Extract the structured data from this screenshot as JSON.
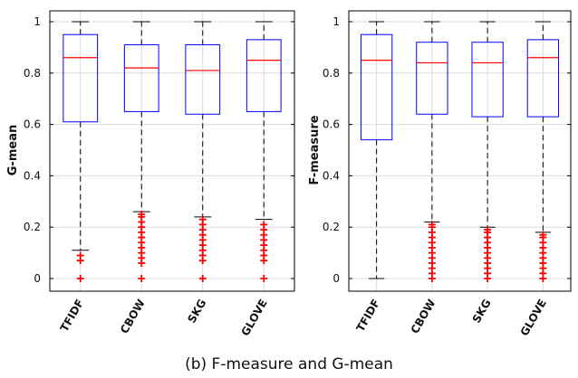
{
  "caption": "(b) F-measure and G-mean",
  "colors": {
    "box": "#0000ff",
    "median": "#ff0000",
    "outlier": "#ff0000",
    "whisker": "#000000",
    "grid": "#dcdcdc"
  },
  "chart_data": [
    {
      "type": "box",
      "ylabel": "G-mean",
      "xlabel": "",
      "title": "",
      "ylim": [
        0,
        1
      ],
      "yticks": [
        "0",
        "0.2",
        "0.4",
        "0.6",
        "0.8",
        "1"
      ],
      "grid": true,
      "categories": [
        "TFIDF",
        "CBOW",
        "SKG",
        "GLOVE"
      ],
      "boxes": [
        {
          "whisker_low": 0.11,
          "q1": 0.61,
          "median": 0.86,
          "q3": 0.95,
          "whisker_high": 1.0,
          "outliers": [
            0.0,
            0.07,
            0.09
          ]
        },
        {
          "whisker_low": 0.26,
          "q1": 0.65,
          "median": 0.82,
          "q3": 0.91,
          "whisker_high": 1.0,
          "outliers": [
            0.0,
            0.06,
            0.08,
            0.1,
            0.12,
            0.14,
            0.16,
            0.18,
            0.2,
            0.22,
            0.24,
            0.25
          ]
        },
        {
          "whisker_low": 0.24,
          "q1": 0.64,
          "median": 0.81,
          "q3": 0.91,
          "whisker_high": 1.0,
          "outliers": [
            0.0,
            0.07,
            0.09,
            0.11,
            0.13,
            0.15,
            0.17,
            0.19,
            0.21,
            0.23
          ]
        },
        {
          "whisker_low": 0.23,
          "q1": 0.65,
          "median": 0.85,
          "q3": 0.93,
          "whisker_high": 1.0,
          "outliers": [
            0.0,
            0.07,
            0.09,
            0.11,
            0.13,
            0.15,
            0.17,
            0.19,
            0.21
          ]
        }
      ]
    },
    {
      "type": "box",
      "ylabel": "F-measure",
      "xlabel": "",
      "title": "",
      "ylim": [
        0,
        1
      ],
      "yticks": [
        "0",
        "0.2",
        "0.4",
        "0.6",
        "0.8",
        "1"
      ],
      "grid": true,
      "categories": [
        "TFIDF",
        "CBOW",
        "SKG",
        "GLOVE"
      ],
      "boxes": [
        {
          "whisker_low": 0.0,
          "q1": 0.54,
          "median": 0.85,
          "q3": 0.95,
          "whisker_high": 1.0,
          "outliers": []
        },
        {
          "whisker_low": 0.22,
          "q1": 0.64,
          "median": 0.84,
          "q3": 0.92,
          "whisker_high": 1.0,
          "outliers": [
            0.0,
            0.02,
            0.04,
            0.06,
            0.08,
            0.1,
            0.12,
            0.14,
            0.16,
            0.18,
            0.2,
            0.21
          ]
        },
        {
          "whisker_low": 0.2,
          "q1": 0.63,
          "median": 0.84,
          "q3": 0.92,
          "whisker_high": 1.0,
          "outliers": [
            0.0,
            0.02,
            0.04,
            0.06,
            0.08,
            0.1,
            0.12,
            0.14,
            0.16,
            0.18,
            0.19
          ]
        },
        {
          "whisker_low": 0.18,
          "q1": 0.63,
          "median": 0.86,
          "q3": 0.93,
          "whisker_high": 1.0,
          "outliers": [
            0.0,
            0.02,
            0.04,
            0.06,
            0.08,
            0.1,
            0.12,
            0.14,
            0.16,
            0.17
          ]
        }
      ]
    }
  ]
}
